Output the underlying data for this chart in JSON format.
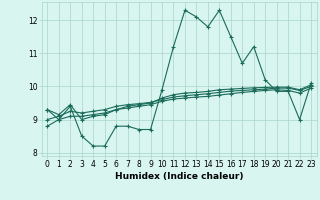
{
  "xlabel": "Humidex (Indice chaleur)",
  "x": [
    0,
    1,
    2,
    3,
    4,
    5,
    6,
    7,
    8,
    9,
    10,
    11,
    12,
    13,
    14,
    15,
    16,
    17,
    18,
    19,
    20,
    21,
    22,
    23
  ],
  "line1": [
    9.3,
    9.0,
    9.4,
    8.5,
    8.2,
    8.2,
    8.8,
    8.8,
    8.7,
    8.7,
    9.9,
    11.2,
    12.3,
    12.1,
    11.8,
    12.3,
    11.5,
    10.7,
    11.2,
    10.2,
    9.85,
    9.85,
    9.0,
    10.1
  ],
  "line2": [
    9.3,
    9.15,
    9.45,
    9.0,
    9.1,
    9.15,
    9.3,
    9.4,
    9.45,
    9.5,
    9.65,
    9.75,
    9.8,
    9.82,
    9.85,
    9.9,
    9.92,
    9.94,
    9.96,
    9.97,
    9.98,
    9.98,
    9.9,
    10.05
  ],
  "line3": [
    9.0,
    9.1,
    9.25,
    9.2,
    9.25,
    9.3,
    9.4,
    9.45,
    9.48,
    9.52,
    9.6,
    9.68,
    9.72,
    9.75,
    9.78,
    9.82,
    9.86,
    9.88,
    9.9,
    9.92,
    9.95,
    9.95,
    9.88,
    10.0
  ],
  "line4": [
    8.8,
    9.0,
    9.1,
    9.1,
    9.15,
    9.2,
    9.3,
    9.35,
    9.4,
    9.45,
    9.55,
    9.62,
    9.65,
    9.68,
    9.7,
    9.74,
    9.78,
    9.82,
    9.85,
    9.88,
    9.9,
    9.88,
    9.8,
    9.95
  ],
  "color": "#1a6b5a",
  "bg_color": "#d8f5ef",
  "grid_color": "#aad5cb",
  "ylim": [
    7.9,
    12.55
  ],
  "xlim": [
    -0.5,
    23.5
  ],
  "yticks": [
    8,
    9,
    10,
    11,
    12
  ],
  "xticks": [
    0,
    1,
    2,
    3,
    4,
    5,
    6,
    7,
    8,
    9,
    10,
    11,
    12,
    13,
    14,
    15,
    16,
    17,
    18,
    19,
    20,
    21,
    22,
    23
  ],
  "tick_fontsize": 5.5,
  "xlabel_fontsize": 6.5,
  "lw": 0.8,
  "markersize": 3.0
}
